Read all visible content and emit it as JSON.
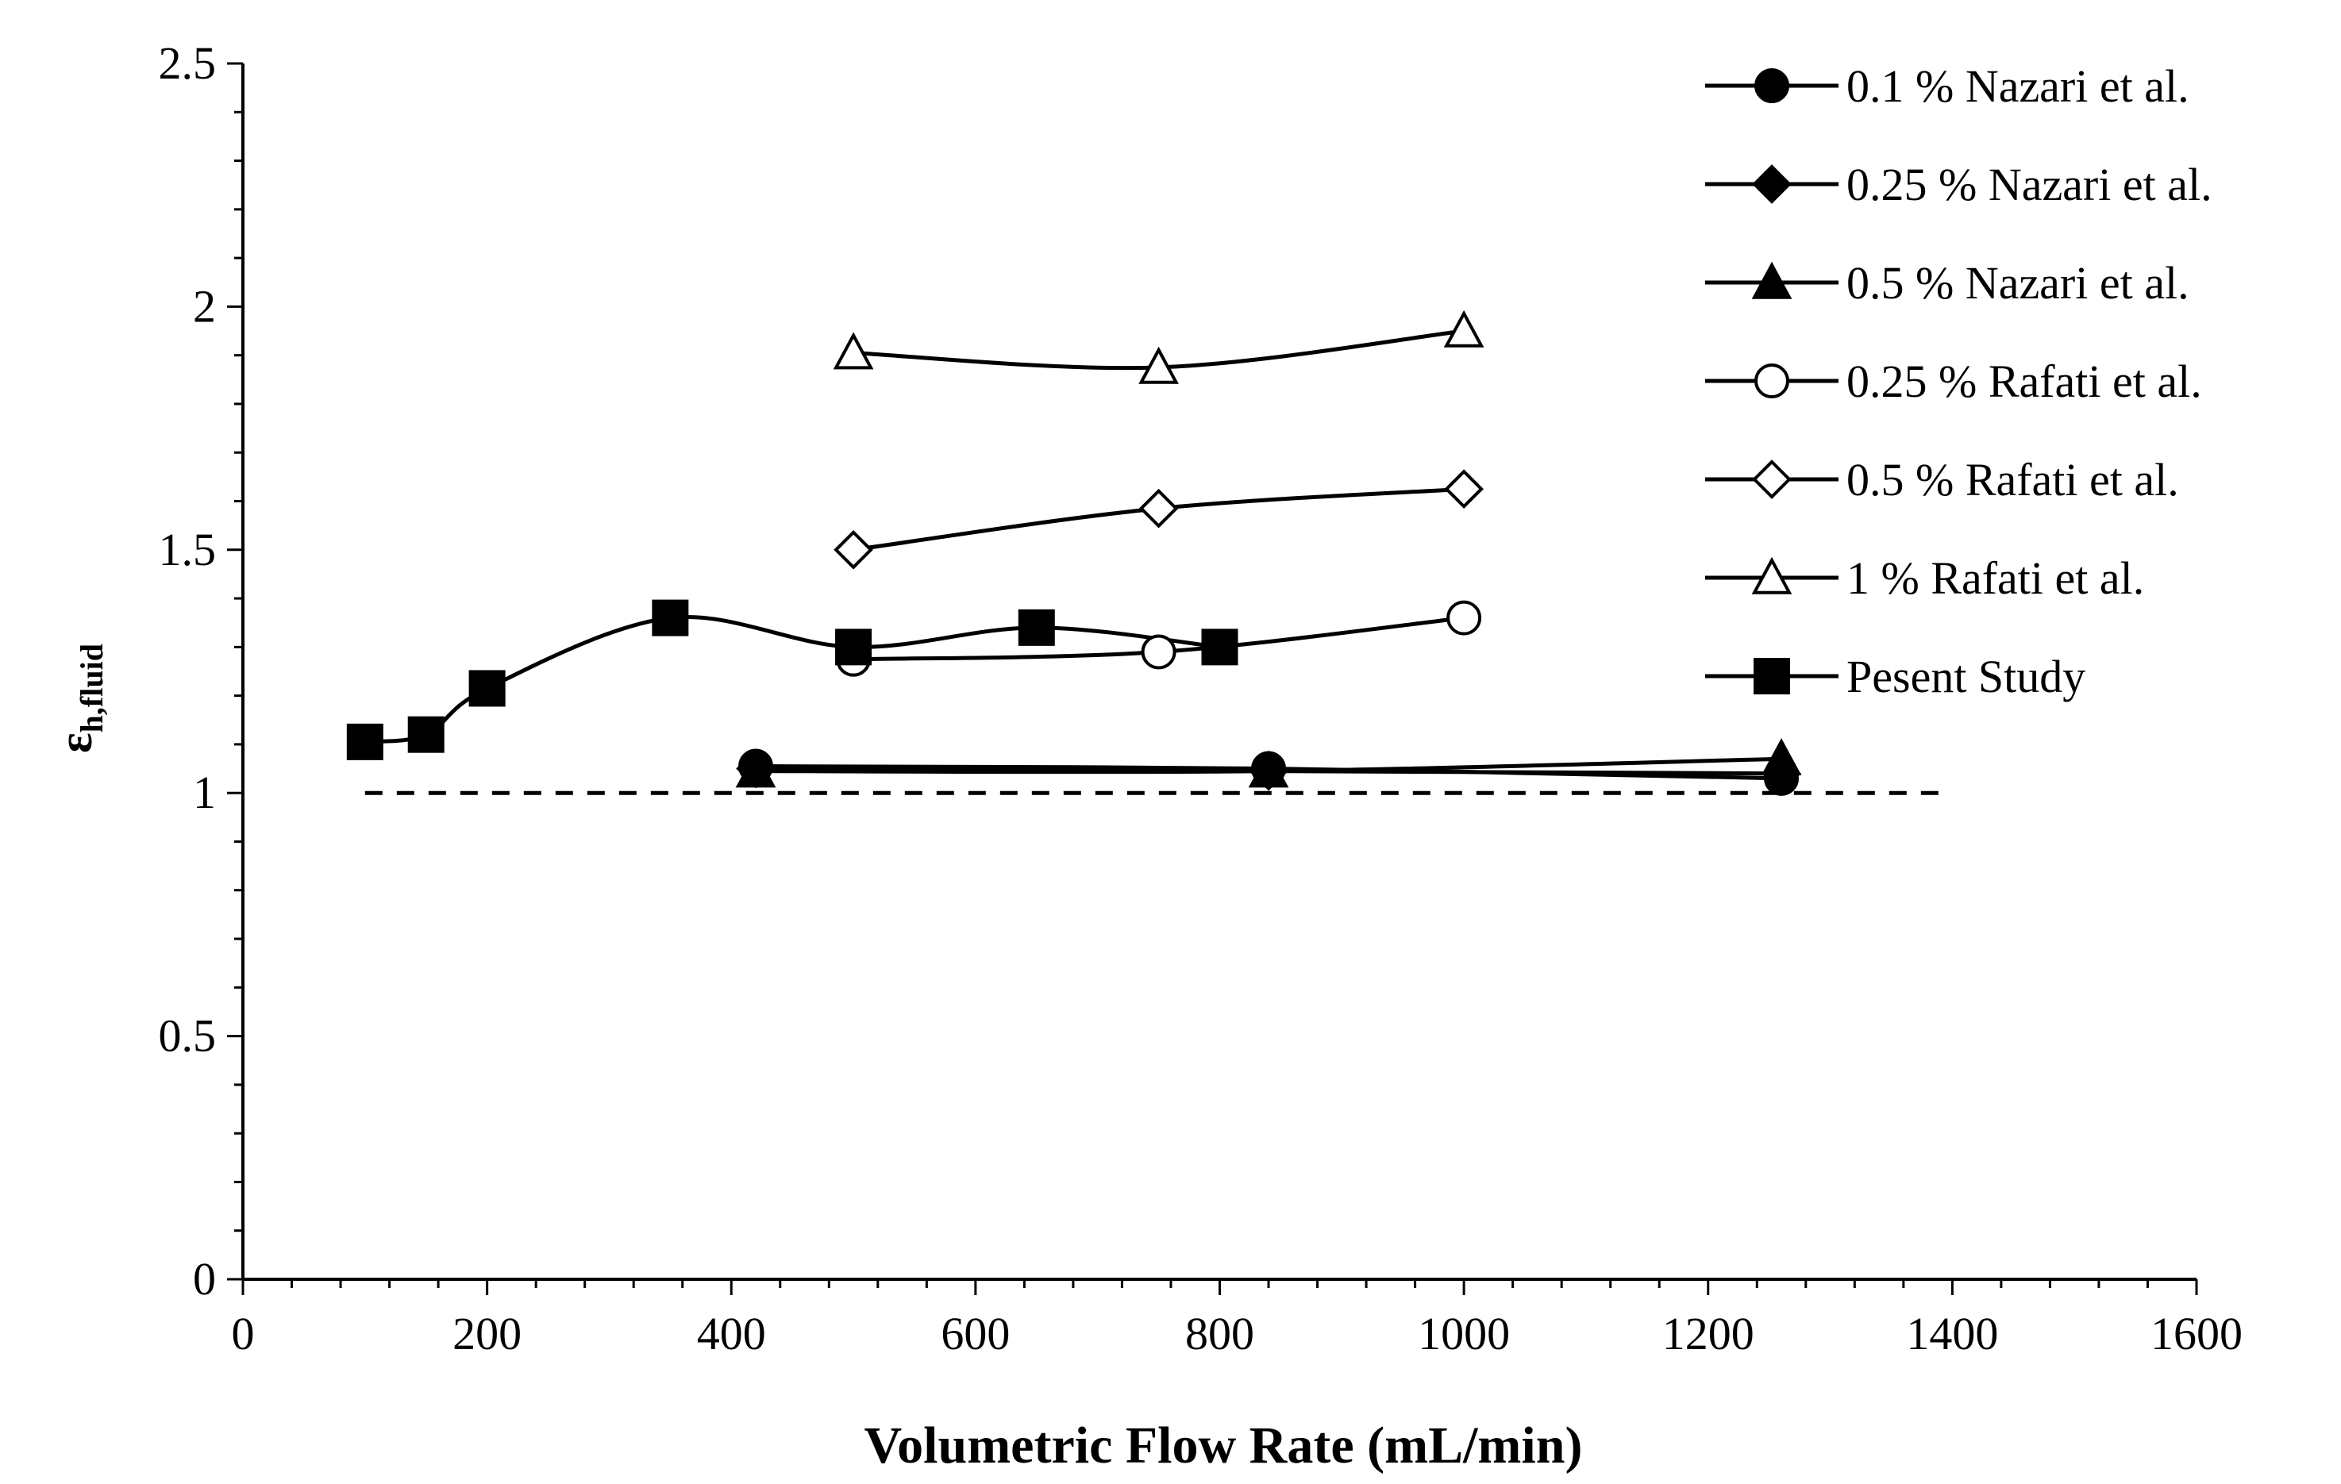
{
  "chart_data": {
    "type": "line",
    "title": "",
    "xlabel": "Volumetric Flow Rate (mL/min)",
    "ylabel_main": "ε",
    "ylabel_sub": "h,fluid",
    "xlim": [
      0,
      1600
    ],
    "ylim": [
      0,
      2.5
    ],
    "x_ticks": [
      0,
      200,
      400,
      600,
      800,
      1000,
      1200,
      1400,
      1600
    ],
    "y_ticks": [
      0,
      0.5,
      1,
      1.5,
      2,
      2.5
    ],
    "x_tick_labels": [
      "0",
      "200",
      "400",
      "600",
      "800",
      "1000",
      "1200",
      "1400",
      "1600"
    ],
    "y_tick_labels": [
      "0",
      "0.5",
      "1",
      "1.5",
      "2",
      "2.5"
    ],
    "grid": false,
    "legend_position": "top-right",
    "reference_line": {
      "y": 1,
      "x_range": [
        100,
        1400
      ],
      "style": "dashed"
    },
    "series": [
      {
        "name": "0.1 % Nazari et al.",
        "marker": "circle",
        "filled": true,
        "x": [
          420,
          840,
          1260
        ],
        "y": [
          1.055,
          1.05,
          1.03
        ]
      },
      {
        "name": "0.25 % Nazari et al.",
        "marker": "diamond",
        "filled": true,
        "x": [
          420,
          840,
          1260
        ],
        "y": [
          1.05,
          1.045,
          1.04
        ]
      },
      {
        "name": "0.5 % Nazari et al.",
        "marker": "triangle",
        "filled": true,
        "x": [
          420,
          840,
          1260
        ],
        "y": [
          1.045,
          1.045,
          1.07
        ]
      },
      {
        "name": "0.25 % Rafati et al.",
        "marker": "circle",
        "filled": false,
        "x": [
          500,
          750,
          1000
        ],
        "y": [
          1.275,
          1.29,
          1.36
        ]
      },
      {
        "name": "0.5 % Rafati et al.",
        "marker": "diamond",
        "filled": false,
        "x": [
          500,
          750,
          1000
        ],
        "y": [
          1.5,
          1.585,
          1.625
        ]
      },
      {
        "name": "1 % Rafati et al.",
        "marker": "triangle",
        "filled": false,
        "x": [
          500,
          750,
          1000
        ],
        "y": [
          1.905,
          1.875,
          1.95
        ]
      },
      {
        "name": "Pesent Study",
        "marker": "square",
        "filled": true,
        "x": [
          100,
          150,
          200,
          350,
          500,
          650,
          800
        ],
        "y": [
          1.105,
          1.12,
          1.215,
          1.36,
          1.3,
          1.34,
          1.3
        ]
      }
    ]
  }
}
